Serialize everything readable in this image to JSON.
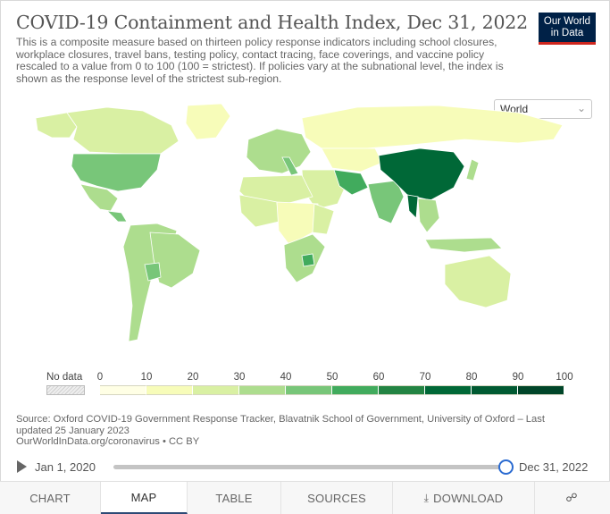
{
  "header": {
    "title": "COVID-19 Containment and Health Index, Dec 31, 2022",
    "subtitle": "This is a composite measure based on thirteen policy response indicators including school closures, workplace closures, travel bans, testing policy, contact tracing, face coverings, and vaccine policy rescaled to a value from 0 to 100 (100 = strictest). If policies vary at the subnational level, the index is shown as the response level of the strictest sub-region.",
    "logo_line1": "Our World",
    "logo_line2": "in Data"
  },
  "region_select": {
    "value": "World",
    "icon": "chevron-down-icon"
  },
  "legend": {
    "no_data_label": "No data",
    "ticks": [
      "0",
      "10",
      "20",
      "30",
      "40",
      "50",
      "60",
      "70",
      "80",
      "90",
      "100"
    ],
    "colors": [
      "#ffffe5",
      "#f7fcb9",
      "#d9f0a3",
      "#addd8e",
      "#78c679",
      "#41ab5d",
      "#238443",
      "#006837",
      "#005a32",
      "#004529"
    ]
  },
  "source": {
    "line1": "Source: Oxford COVID-19 Government Response Tracker, Blavatnik School of Government, University of Oxford – Last",
    "line2": "updated 25 January 2023",
    "line3": "OurWorldInData.org/coronavirus • CC BY"
  },
  "timeline": {
    "start_label": "Jan 1, 2020",
    "end_label": "Dec 31, 2022",
    "position": 1.0
  },
  "tabs": [
    "CHART",
    "MAP",
    "TABLE",
    "SOURCES",
    "DOWNLOAD",
    ""
  ],
  "active_tab": "MAP",
  "map_data": {
    "date": "Dec 31, 2022",
    "regions": [
      {
        "name": "Canada",
        "bin": 2
      },
      {
        "name": "Alaska",
        "bin": 2
      },
      {
        "name": "Greenland",
        "bin": 1
      },
      {
        "name": "United States",
        "bin": 4
      },
      {
        "name": "Mexico",
        "bin": 3
      },
      {
        "name": "Central America",
        "bin": 4
      },
      {
        "name": "South America",
        "bin": 3
      },
      {
        "name": "Brazil",
        "bin": 3
      },
      {
        "name": "Bolivia",
        "bin": 4
      },
      {
        "name": "Western Europe",
        "bin": 3
      },
      {
        "name": "Italy",
        "bin": 4
      },
      {
        "name": "Russia",
        "bin": 1
      },
      {
        "name": "Central Asia",
        "bin": 1
      },
      {
        "name": "Iran",
        "bin": 5
      },
      {
        "name": "Middle East",
        "bin": 2
      },
      {
        "name": "India",
        "bin": 4
      },
      {
        "name": "China",
        "bin": 7
      },
      {
        "name": "Myanmar",
        "bin": 7
      },
      {
        "name": "Southeast Asia",
        "bin": 3
      },
      {
        "name": "North Africa",
        "bin": 2
      },
      {
        "name": "West Africa",
        "bin": 2
      },
      {
        "name": "Central Africa",
        "bin": 1
      },
      {
        "name": "East Africa",
        "bin": 2
      },
      {
        "name": "Southern Africa",
        "bin": 3
      },
      {
        "name": "Zimbabwe",
        "bin": 5
      },
      {
        "name": "Australia",
        "bin": 2
      },
      {
        "name": "Indonesia",
        "bin": 3
      },
      {
        "name": "Japan",
        "bin": 3
      }
    ]
  }
}
